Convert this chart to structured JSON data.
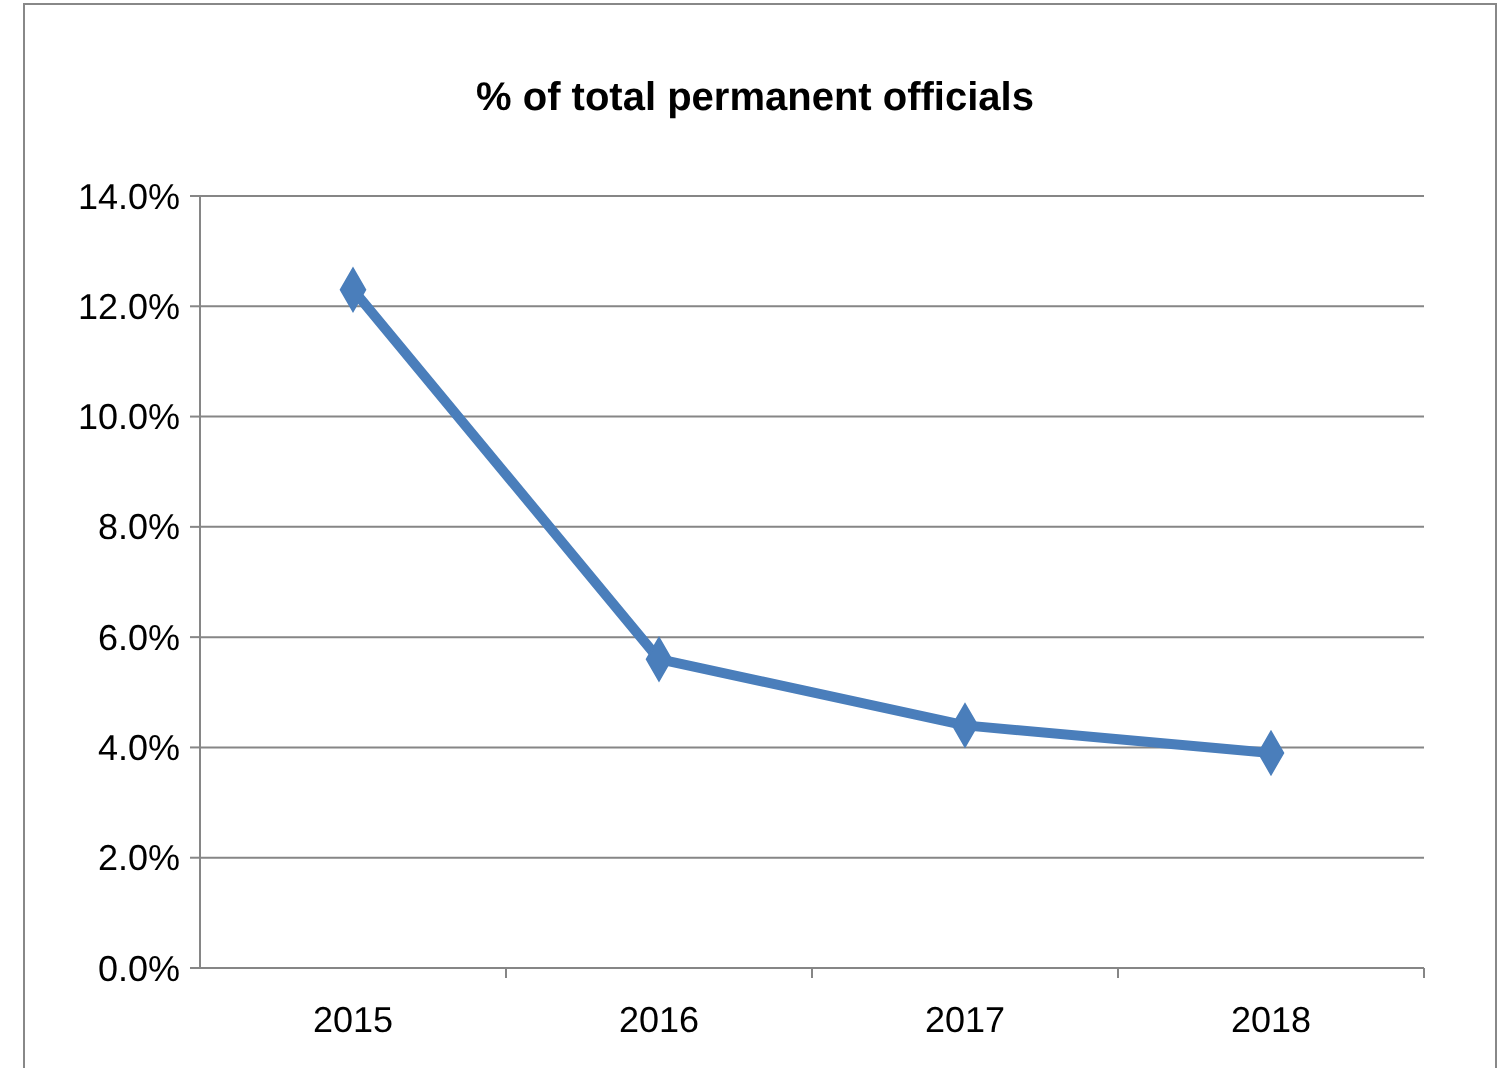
{
  "chart_data": {
    "type": "line",
    "title": "% of total permanent officials",
    "categories": [
      "2015",
      "2016",
      "2017",
      "2018"
    ],
    "series": [
      {
        "color": "#4a7ebb",
        "values": [
          12.3,
          5.6,
          4.4,
          3.9
        ]
      }
    ],
    "ylim": [
      0,
      14
    ],
    "yticks": [
      {
        "value": 0,
        "label": "0.0%"
      },
      {
        "value": 2,
        "label": "2.0%"
      },
      {
        "value": 4,
        "label": "4.0%"
      },
      {
        "value": 6,
        "label": "6.0%"
      },
      {
        "value": 8,
        "label": "8.0%"
      },
      {
        "value": 10,
        "label": "10.0%"
      },
      {
        "value": 12,
        "label": "12.0%"
      },
      {
        "value": 14,
        "label": "14.0%"
      }
    ],
    "grid": "y",
    "marker": "diamond",
    "line_style": "solid"
  }
}
